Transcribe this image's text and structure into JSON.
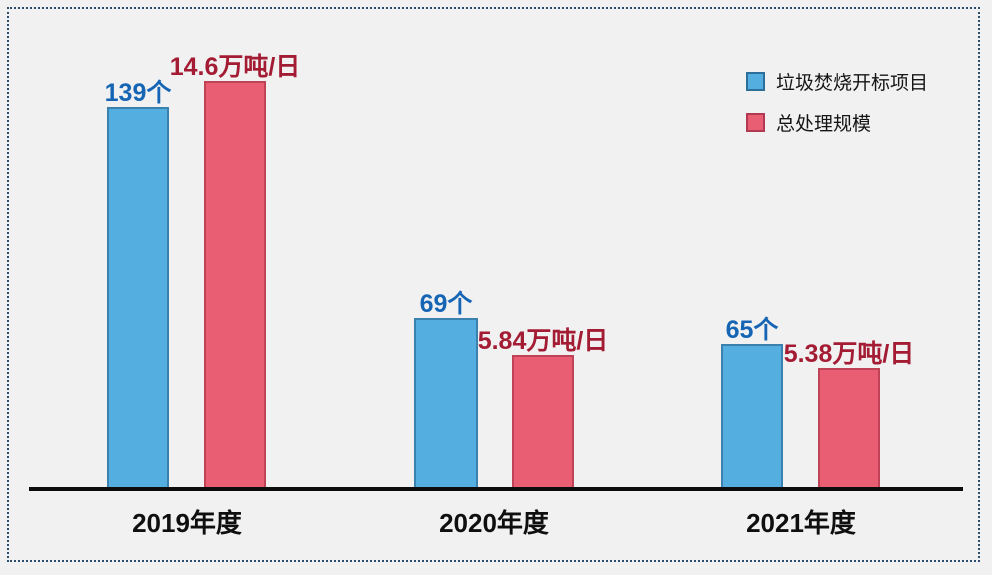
{
  "chart_data": {
    "type": "bar",
    "title": "",
    "categories": [
      "2019年度",
      "2020年度",
      "2021年度"
    ],
    "series": [
      {
        "name": "垃圾焚烧开标项目",
        "values": [
          139,
          69,
          65
        ],
        "unit": "个",
        "labels": [
          "139个",
          "69个",
          "65个"
        ],
        "fill_color": "#55aee0",
        "border_color": "#3a81ad",
        "label_color": "#1565b4"
      },
      {
        "name": "总处理规模",
        "values": [
          14.6,
          5.84,
          5.38
        ],
        "unit": "万吨/日",
        "labels": [
          "14.6万吨/日",
          "5.84万吨/日",
          "5.38万吨/日"
        ],
        "fill_color": "#ea5e74",
        "border_color": "#bf4257",
        "label_color": "#a31c33"
      }
    ],
    "xlabel": "",
    "ylabel": "",
    "y_axis_visible": false,
    "grid": false,
    "baseline_axis": true,
    "legend_position": "top-right",
    "frame_style": "dotted",
    "frame_color": "#2e4d6e",
    "background_color": "#f1f1f2"
  }
}
